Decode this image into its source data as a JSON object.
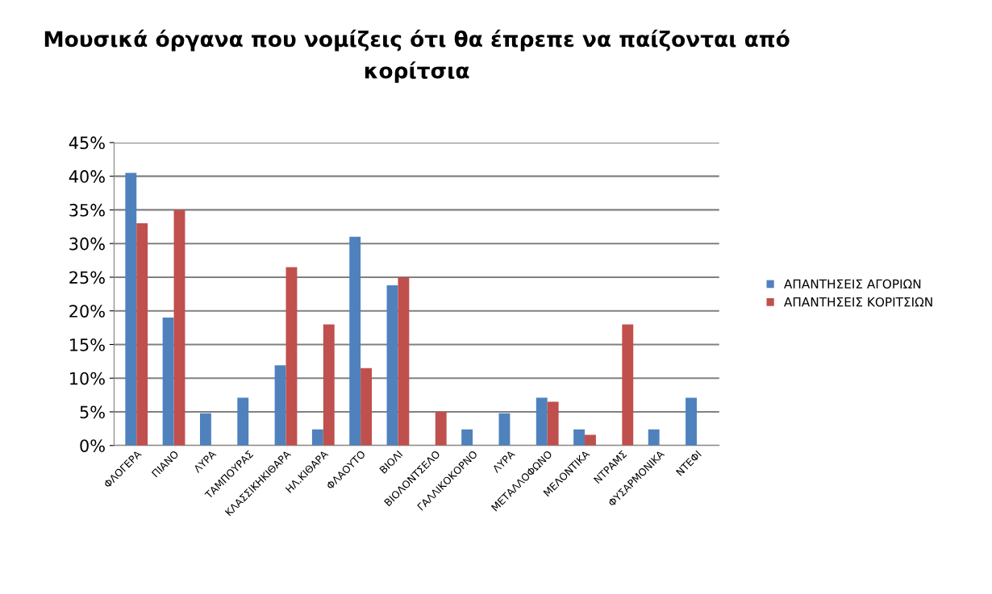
{
  "chart_data": {
    "type": "bar",
    "title": "Μουσικά όργανα που νομίζεις ότι θα έπρεπε να παίζονται από\nκορίτσια",
    "categories": [
      "ΦΛΟΓΕΡΑ",
      "ΠΙΑΝΟ",
      "ΛΥΡΑ",
      "ΤΑΜΠΟΥΡΑΣ",
      "ΚΛΑΣΣΙΚΗΚΙΘΑΡΑ",
      "ΗΛ.ΚΙΘΑΡΑ",
      "ΦΛΑΟΥΤΟ",
      "ΒΙΟΛΙ",
      "ΒΙΟΛΟΝΤΣΕΛΟ",
      "ΓΑΛΛΙΚΟΚΟΡΝΟ",
      "ΛΥΡΑ",
      "ΜΕΤΑΛΛΟΦΩΝΟ",
      "ΜΕΛΟΝΤΙΚΑ",
      "ΝΤΡΑΜΣ",
      "ΦΥΣΑΡΜΟΝΙΚΑ",
      "ΝΤΕΦΙ"
    ],
    "series": [
      {
        "name": "ΑΠΑΝΤΗΣΕΙΣ ΑΓΟΡΙΩΝ",
        "color": "#4f81bd",
        "values": [
          40.5,
          19,
          4.8,
          7.1,
          11.9,
          2.4,
          31,
          23.8,
          0,
          2.4,
          4.8,
          7.1,
          2.4,
          0,
          2.4,
          7.1
        ]
      },
      {
        "name": "ΑΠΑΝΤΗΣΕΙΣ ΚΟΡΙΤΣΙΩΝ",
        "color": "#c0504d",
        "values": [
          33,
          35,
          0,
          0,
          26.5,
          18,
          11.5,
          25,
          5,
          0,
          0,
          6.5,
          1.6,
          18,
          0,
          0
        ]
      }
    ],
    "ylim": [
      0,
      45
    ],
    "yticks": [
      {
        "value": 0,
        "label": "0%"
      },
      {
        "value": 5,
        "label": "5%"
      },
      {
        "value": 10,
        "label": "10%"
      },
      {
        "value": 15,
        "label": "15%"
      },
      {
        "value": 20,
        "label": "20%"
      },
      {
        "value": 25,
        "label": "25%"
      },
      {
        "value": 30,
        "label": "30%"
      },
      {
        "value": 35,
        "label": "35%"
      },
      {
        "value": 40,
        "label": "40%"
      },
      {
        "value": 45,
        "label": "45%"
      }
    ],
    "grid": "y",
    "legend": "right"
  }
}
